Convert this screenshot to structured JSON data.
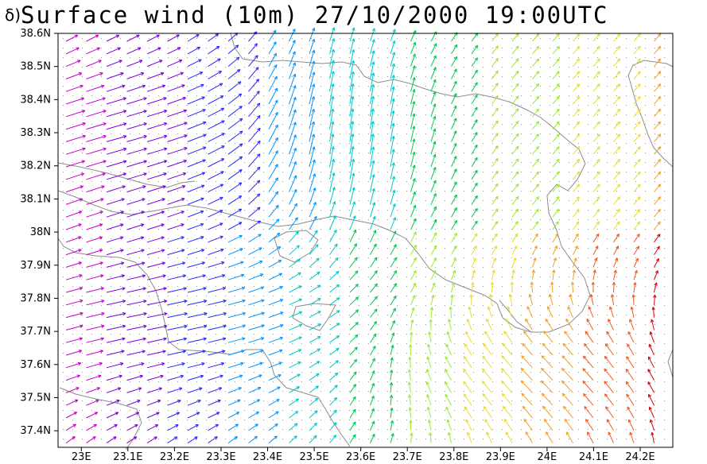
{
  "title": {
    "prefix": "δ)",
    "main": "Surface wind (10m) 27/10/2000 19:00UTC"
  },
  "axes": {
    "lat_labels": [
      "38.6N",
      "38.5N",
      "38.4N",
      "38.3N",
      "38.2N",
      "38.1N",
      "38N",
      "37.9N",
      "37.8N",
      "37.7N",
      "37.6N",
      "37.5N",
      "37.4N"
    ],
    "lat_values": [
      38.6,
      38.5,
      38.4,
      38.3,
      38.2,
      38.1,
      38.0,
      37.9,
      37.8,
      37.7,
      37.6,
      37.5,
      37.4
    ],
    "lon_labels": [
      "23E",
      "23.1E",
      "23.2E",
      "23.3E",
      "23.4E",
      "23.5E",
      "23.6E",
      "23.7E",
      "23.8E",
      "23.9E",
      "24E",
      "24.1E",
      "24.2E"
    ],
    "lon_values": [
      23.0,
      23.1,
      23.2,
      23.3,
      23.4,
      23.5,
      23.6,
      23.7,
      23.8,
      23.9,
      24.0,
      24.1,
      24.2
    ],
    "lat_range": [
      37.35,
      38.6
    ],
    "lon_range": [
      22.95,
      24.27
    ]
  },
  "wind_colors": [
    "#c800c8",
    "#7800dc",
    "#2828ff",
    "#0096ff",
    "#00c8c8",
    "#00c850",
    "#a0e632",
    "#e6dc32",
    "#f0a028",
    "#f05a1e",
    "#dc0000"
  ]
}
